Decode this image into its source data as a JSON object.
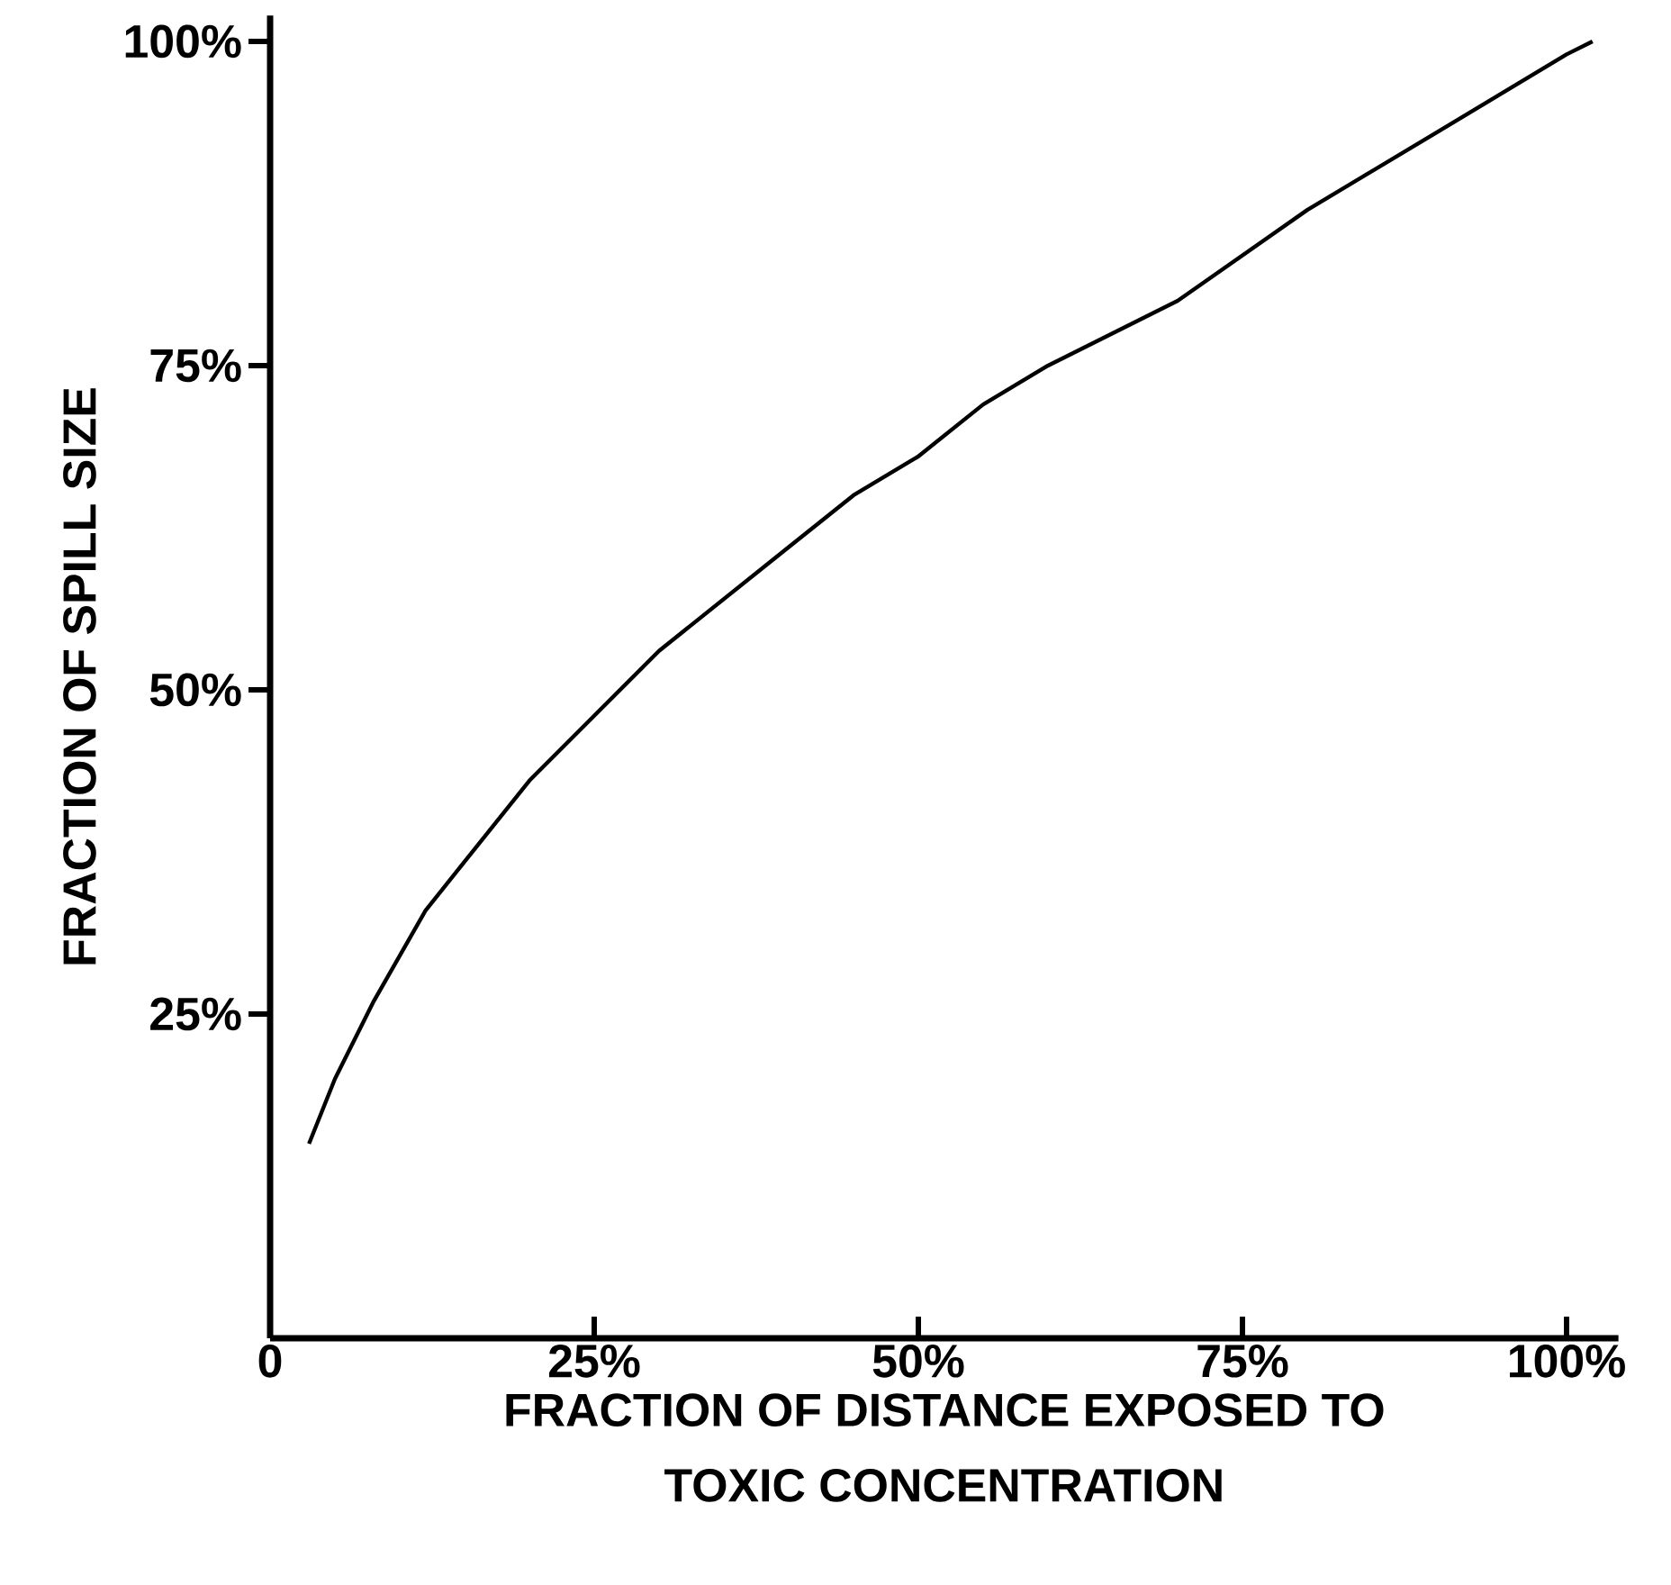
{
  "chart_data": {
    "type": "line",
    "xlabel": "FRACTION OF DISTANCE EXPOSED TO\nTOXIC CONCENTRATION",
    "ylabel": "FRACTION OF SPILL SIZE",
    "x": [
      3,
      5,
      8,
      12,
      16,
      20,
      25,
      30,
      35,
      40,
      45,
      50,
      55,
      60,
      70,
      80,
      90,
      100,
      102
    ],
    "series": [
      {
        "color": "#000000",
        "values": [
          15,
          20,
          26,
          33,
          38,
          43,
          48,
          53,
          57,
          61,
          65,
          68,
          72,
          75,
          80,
          87,
          93,
          99,
          100
        ]
      }
    ],
    "xlim": [
      0,
      104
    ],
    "ylim": [
      0,
      102
    ],
    "xticks": [
      {
        "value": 0,
        "label": "0"
      },
      {
        "value": 25,
        "label": "25%"
      },
      {
        "value": 50,
        "label": "50%"
      },
      {
        "value": 75,
        "label": "75%"
      },
      {
        "value": 100,
        "label": "100%"
      }
    ],
    "yticks": [
      {
        "value": 25,
        "label": "25%"
      },
      {
        "value": 50,
        "label": "50%"
      },
      {
        "value": 75,
        "label": "75%"
      },
      {
        "value": 100,
        "label": "100%"
      }
    ],
    "grid": false,
    "marker": "none",
    "line_style": "solid"
  }
}
